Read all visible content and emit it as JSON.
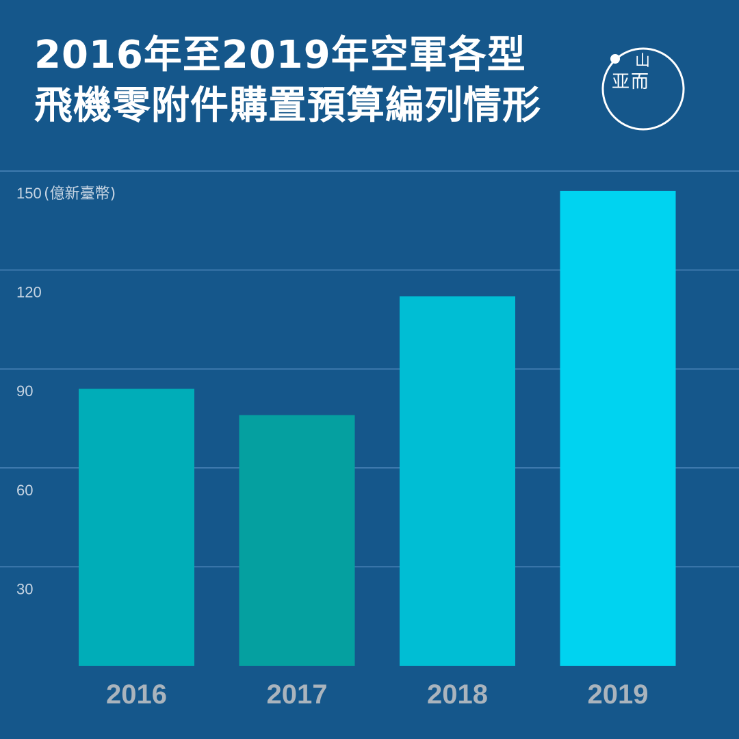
{
  "title": {
    "line1": "2016年至2019年空軍各型",
    "line2": "飛機零附件購置預算編列情形"
  },
  "logo": {
    "glyph_top": "山",
    "glyph_left": "亚",
    "glyph_right": "而"
  },
  "colors": {
    "background": "#15578b",
    "gridline": "#4d86ba",
    "tick_text": "#c7d5e3",
    "category_text": "#aab4bd",
    "bar_2016": "#00adb8",
    "bar_2017": "#05a0a0",
    "bar_2018": "#00bed4",
    "bar_2019": "#00d3f0"
  },
  "chart_data": {
    "type": "bar",
    "categories": [
      "2016",
      "2017",
      "2018",
      "2019"
    ],
    "values": [
      84,
      76,
      112,
      144
    ],
    "ylim": [
      0,
      150
    ],
    "yticks": [
      30,
      60,
      90,
      120,
      150
    ],
    "ytick_labels": [
      "30",
      "60",
      "90",
      "120",
      "150"
    ],
    "yunit": "(億新臺幣)",
    "grid": true
  }
}
